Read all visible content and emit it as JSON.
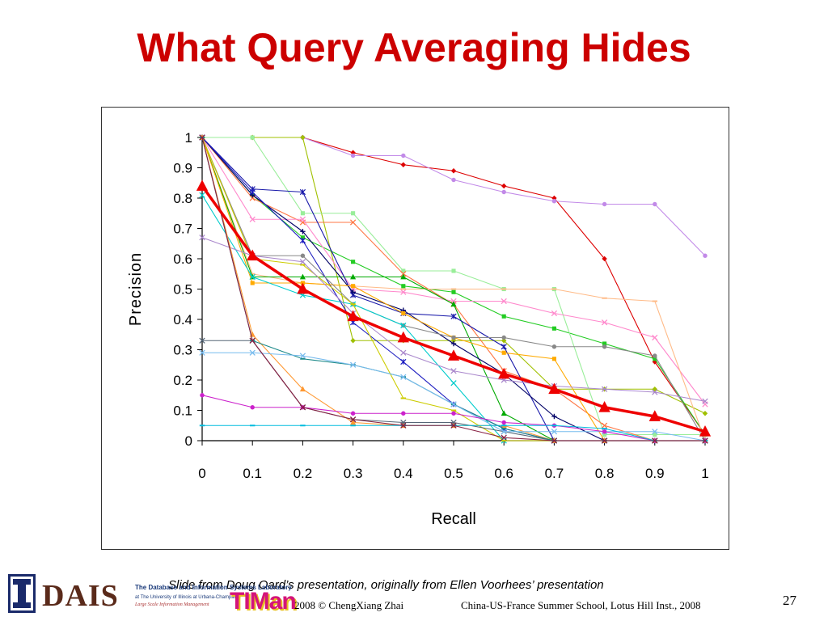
{
  "slide": {
    "title": "What Query Averaging Hides",
    "credit": "Slide from Doug Oard’s presentation, originally from Ellen Voorhees’ presentation",
    "footer_left": "2008  © ChengXiang Zhai",
    "footer_right": "China-US-France Summer School, Lotus Hill Inst., 2008",
    "page_number": "27",
    "logos": {
      "illinois_icon": "illinois-I-logo",
      "dais_text": "DAIS",
      "dais_line1": "The Database and Information Systems Laboratory",
      "dais_line2": "at The University of Illinois at Urbana-Champaign",
      "dais_line3": "Large Scale Information Management",
      "timan_text": "TIMan"
    }
  },
  "chart_data": {
    "type": "line",
    "xlabel": "Recall",
    "ylabel": "Precision",
    "xlim": [
      0,
      1
    ],
    "ylim": [
      0,
      1
    ],
    "x": [
      0,
      0.1,
      0.2,
      0.3,
      0.4,
      0.5,
      0.6,
      0.7,
      0.8,
      0.9,
      1
    ],
    "x_ticks": [
      "0",
      "0.1",
      "0.2",
      "0.3",
      "0.4",
      "0.5",
      "0.6",
      "0.7",
      "0.8",
      "0.9",
      "1"
    ],
    "y_ticks": [
      "0",
      "0.1",
      "0.2",
      "0.3",
      "0.4",
      "0.5",
      "0.6",
      "0.7",
      "0.8",
      "0.9",
      "1"
    ],
    "grid": false,
    "legend": "none",
    "series": [
      {
        "color": "#dd0000",
        "marker": "diamond",
        "values": [
          1,
          1,
          1,
          0.95,
          0.91,
          0.89,
          0.84,
          0.8,
          0.6,
          0.26,
          0.02
        ]
      },
      {
        "color": "#c28ae8",
        "marker": "circle",
        "values": [
          1,
          1,
          1,
          0.94,
          0.94,
          0.86,
          0.82,
          0.79,
          0.78,
          0.78,
          0.61
        ]
      },
      {
        "color": "#a0c000",
        "marker": "diamond",
        "values": [
          1,
          1,
          1,
          0.33,
          0.33,
          0.33,
          0.33,
          0.17,
          0.17,
          0.17,
          0.09
        ]
      },
      {
        "color": "#22cc22",
        "marker": "square",
        "values": [
          1,
          0.81,
          0.67,
          0.59,
          0.51,
          0.49,
          0.41,
          0.37,
          0.32,
          0.27,
          0.02
        ]
      },
      {
        "color": "#99ee99",
        "marker": "square",
        "values": [
          1,
          1,
          0.75,
          0.75,
          0.56,
          0.56,
          0.5,
          0.5,
          0.02,
          0.02,
          0.02
        ]
      },
      {
        "color": "#ff7744",
        "marker": "x",
        "values": [
          1,
          0.8,
          0.72,
          0.72,
          0.55,
          0.45,
          0.23,
          0.17,
          0.05,
          0.0,
          0.0
        ]
      },
      {
        "color": "#ff88cc",
        "marker": "x",
        "values": [
          1,
          0.73,
          0.73,
          0.5,
          0.49,
          0.46,
          0.46,
          0.42,
          0.39,
          0.34,
          0.12
        ]
      },
      {
        "color": "#ffbb88",
        "marker": "dash",
        "values": [
          1,
          0.55,
          0.52,
          0.51,
          0.5,
          0.5,
          0.5,
          0.5,
          0.47,
          0.46,
          0.0
        ]
      },
      {
        "color": "#00aa00",
        "marker": "triangle",
        "values": [
          1,
          0.54,
          0.54,
          0.54,
          0.54,
          0.45,
          0.09,
          0.0,
          0.0,
          0.0,
          0.0
        ]
      },
      {
        "color": "#1a1aaa",
        "marker": "star",
        "values": [
          1,
          0.83,
          0.82,
          0.48,
          0.42,
          0.41,
          0.31,
          0.0,
          0.0,
          0.0,
          0.0
        ]
      },
      {
        "color": "#000066",
        "marker": "plus",
        "values": [
          1,
          0.81,
          0.69,
          0.49,
          0.43,
          0.32,
          0.22,
          0.08,
          0.0,
          0.0,
          0.0
        ]
      },
      {
        "color": "#1c1cc0",
        "marker": "star",
        "values": [
          1,
          0.82,
          0.66,
          0.39,
          0.26,
          0.12,
          0.04,
          0.0,
          0.0,
          0.0,
          0.0
        ]
      },
      {
        "color": "#ffaa00",
        "marker": "square",
        "values": [
          1,
          0.52,
          0.52,
          0.51,
          0.42,
          0.34,
          0.29,
          0.27,
          0.0,
          0.0,
          0.0
        ]
      },
      {
        "color": "#888888",
        "marker": "circle",
        "values": [
          1,
          0.61,
          0.61,
          0.45,
          0.38,
          0.34,
          0.34,
          0.31,
          0.31,
          0.28,
          0.0
        ]
      },
      {
        "color": "#00cccc",
        "marker": "x",
        "values": [
          0.81,
          0.54,
          0.48,
          0.45,
          0.38,
          0.19,
          0.0,
          0.0,
          0.0,
          0.0,
          0.0
        ]
      },
      {
        "color": "#cccc00",
        "marker": "dash",
        "values": [
          1,
          0.6,
          0.58,
          0.45,
          0.14,
          0.1,
          0.0,
          0.0,
          0.0,
          0.0,
          0.0
        ]
      },
      {
        "color": "#aa88cc",
        "marker": "x",
        "values": [
          0.67,
          0.61,
          0.59,
          0.42,
          0.29,
          0.23,
          0.2,
          0.18,
          0.17,
          0.16,
          0.13
        ]
      },
      {
        "color": "#ff9933",
        "marker": "triangle",
        "values": [
          1,
          0.35,
          0.17,
          0.06,
          0.05,
          0.05,
          0.05,
          0.0,
          0.0,
          0.0,
          0.0
        ]
      },
      {
        "color": "#556677",
        "marker": "x",
        "values": [
          0.33,
          0.33,
          0.11,
          0.07,
          0.06,
          0.06,
          0.03,
          0.0,
          0.0,
          0.0,
          0.0
        ]
      },
      {
        "color": "#1a8888",
        "marker": "dash",
        "values": [
          1,
          0.33,
          0.27,
          0.25,
          0.21,
          0.12,
          0.04,
          0.0,
          0.0,
          0.0,
          0.0
        ]
      },
      {
        "color": "#77bbee",
        "marker": "x",
        "values": [
          0.29,
          0.29,
          0.28,
          0.25,
          0.21,
          0.12,
          0.03,
          0.03,
          0.03,
          0.03,
          0.0
        ]
      },
      {
        "color": "#cc22cc",
        "marker": "circle",
        "values": [
          0.15,
          0.11,
          0.11,
          0.09,
          0.09,
          0.09,
          0.06,
          0.05,
          0.03,
          0.0,
          0.0
        ]
      },
      {
        "color": "#00bbdd",
        "marker": "dash",
        "values": [
          0.05,
          0.05,
          0.05,
          0.05,
          0.05,
          0.05,
          0.05,
          0.05,
          0.04,
          0.0,
          0.0
        ]
      },
      {
        "color": "#882244",
        "marker": "x",
        "values": [
          1,
          0.33,
          0.11,
          0.07,
          0.05,
          0.05,
          0.01,
          0.0,
          0.0,
          0.0,
          0.0
        ]
      },
      {
        "color": "#ee0000",
        "marker": "triangle",
        "emphasis": true,
        "values": [
          0.84,
          0.61,
          0.5,
          0.41,
          0.34,
          0.28,
          0.22,
          0.17,
          0.11,
          0.08,
          0.03
        ]
      }
    ]
  }
}
